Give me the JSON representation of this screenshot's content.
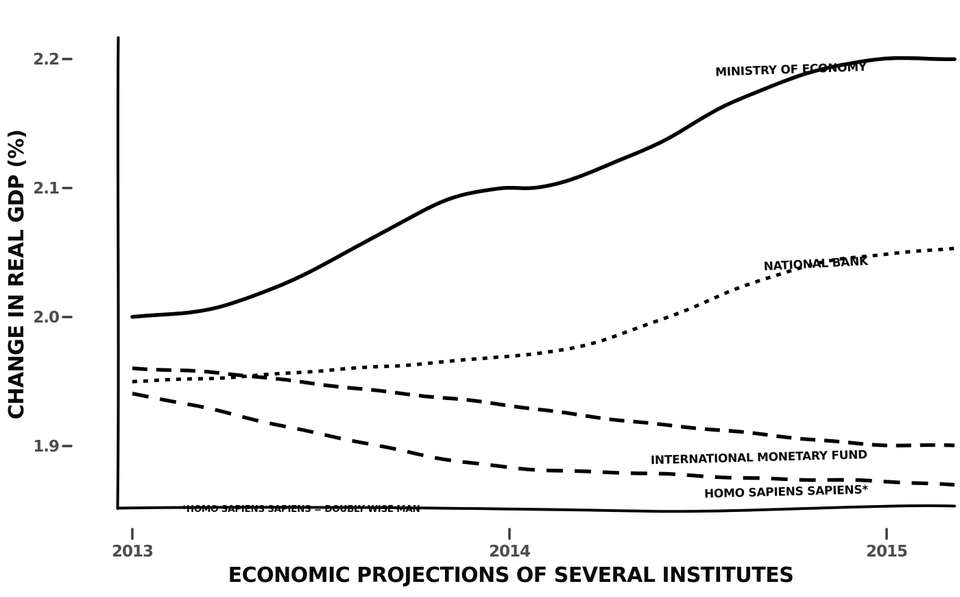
{
  "chart_data": {
    "type": "line",
    "title": "",
    "xlabel": "ECONOMIC PROJECTIONS OF SEVERAL INSTITUTES",
    "ylabel": "CHANGE IN REAL GDP (%)",
    "footnote": "*HOMO SAPIENS SAPIENS = DOUBLY WISE MAN",
    "x_range": [
      2013,
      2015
    ],
    "y_range": [
      1.85,
      2.25
    ],
    "grid": false,
    "legend_position": "end-of-line-annotations",
    "xticks": [
      {
        "value": 2013,
        "label": "2013"
      },
      {
        "value": 2014,
        "label": "2014"
      },
      {
        "value": 2015,
        "label": "2015"
      }
    ],
    "yticks": [
      {
        "value": 1.9,
        "label": "1.9"
      },
      {
        "value": 2.0,
        "label": "2.0"
      },
      {
        "value": 2.1,
        "label": "2.1"
      },
      {
        "value": 2.2,
        "label": "2.2"
      }
    ],
    "series": [
      {
        "name": "MINISTRY OF ECONOMY",
        "style": "solid",
        "points": [
          [
            2013.0,
            2.0
          ],
          [
            2013.15,
            2.003
          ],
          [
            2013.3,
            2.014
          ],
          [
            2013.5,
            2.04
          ],
          [
            2013.7,
            2.071
          ],
          [
            2013.85,
            2.092
          ],
          [
            2013.97,
            2.1
          ],
          [
            2014.08,
            2.101
          ],
          [
            2014.22,
            2.113
          ],
          [
            2014.4,
            2.135
          ],
          [
            2014.6,
            2.168
          ],
          [
            2014.8,
            2.19
          ],
          [
            2014.97,
            2.199
          ],
          [
            2015.18,
            2.2
          ]
        ]
      },
      {
        "name": "NATIONAL BANK",
        "style": "dotted",
        "points": [
          [
            2013.0,
            1.95
          ],
          [
            2013.2,
            1.953
          ],
          [
            2013.4,
            1.956
          ],
          [
            2013.6,
            1.96
          ],
          [
            2013.8,
            1.965
          ],
          [
            2013.95,
            1.969
          ],
          [
            2014.1,
            1.972
          ],
          [
            2014.25,
            1.982
          ],
          [
            2014.45,
            2.004
          ],
          [
            2014.65,
            2.027
          ],
          [
            2014.85,
            2.043
          ],
          [
            2015.0,
            2.049
          ],
          [
            2015.18,
            2.054
          ]
        ]
      },
      {
        "name": "INTERNATIONAL MONETARY FUND",
        "style": "dashed",
        "points": [
          [
            2013.0,
            1.961
          ],
          [
            2013.2,
            1.957
          ],
          [
            2013.4,
            1.951
          ],
          [
            2013.6,
            1.945
          ],
          [
            2013.8,
            1.938
          ],
          [
            2014.0,
            1.931
          ],
          [
            2014.2,
            1.924
          ],
          [
            2014.45,
            1.915
          ],
          [
            2014.7,
            1.908
          ],
          [
            2015.0,
            1.901
          ],
          [
            2015.18,
            1.9
          ]
        ]
      },
      {
        "name": "HOMO SAPIENS SAPIENS*",
        "style": "dashed-sparse",
        "points": [
          [
            2013.0,
            1.94
          ],
          [
            2013.2,
            1.929
          ],
          [
            2013.4,
            1.916
          ],
          [
            2013.6,
            1.903
          ],
          [
            2013.8,
            1.891
          ],
          [
            2014.0,
            1.884
          ],
          [
            2014.2,
            1.88
          ],
          [
            2014.5,
            1.877
          ],
          [
            2014.8,
            1.874
          ],
          [
            2015.0,
            1.872
          ],
          [
            2015.18,
            1.87
          ]
        ]
      }
    ]
  },
  "colors": {
    "line": "#000000",
    "tick": "#3d3d3d",
    "tick_label": "#4d4d4d",
    "text": "#0a0a0a",
    "background": "#ffffff"
  }
}
